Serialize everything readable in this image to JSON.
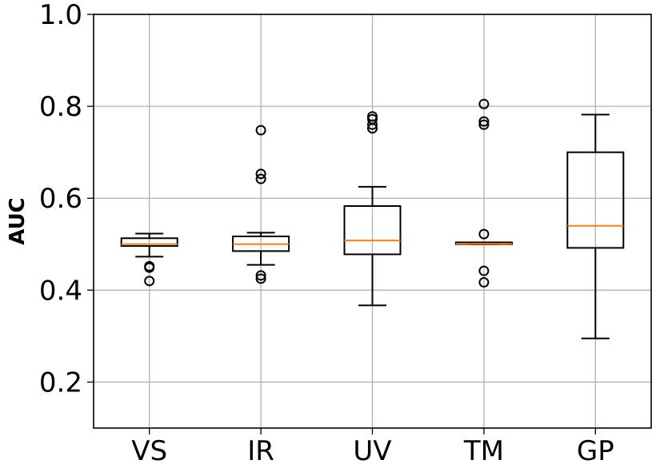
{
  "chart_data": {
    "type": "box",
    "title": "",
    "xlabel": "",
    "ylabel": "AUC",
    "ylim": [
      0.1,
      1.0
    ],
    "yticks": [
      0.2,
      0.4,
      0.6,
      0.8,
      1.0
    ],
    "ytick_labels": [
      "0.2",
      "0.4",
      "0.6",
      "0.8",
      "1.0"
    ],
    "grid": true,
    "categories": [
      "VS",
      "IR",
      "UV",
      "TM",
      "GP"
    ],
    "boxes": [
      {
        "category": "VS",
        "whisker_low": 0.473,
        "q1": 0.496,
        "median": 0.5,
        "q3": 0.513,
        "whisker_high": 0.523,
        "outliers": [
          0.452,
          0.449,
          0.42
        ]
      },
      {
        "category": "IR",
        "whisker_low": 0.455,
        "q1": 0.485,
        "median": 0.5,
        "q3": 0.517,
        "whisker_high": 0.525,
        "outliers": [
          0.748,
          0.653,
          0.642,
          0.432,
          0.425
        ]
      },
      {
        "category": "UV",
        "whisker_low": 0.367,
        "q1": 0.478,
        "median": 0.508,
        "q3": 0.583,
        "whisker_high": 0.625,
        "outliers": [
          0.778,
          0.772,
          0.76,
          0.752
        ]
      },
      {
        "category": "TM",
        "whisker_low": 0.5,
        "q1": 0.5,
        "median": 0.501,
        "q3": 0.504,
        "whisker_high": 0.504,
        "outliers": [
          0.805,
          0.767,
          0.76,
          0.522,
          0.442,
          0.417
        ]
      },
      {
        "category": "GP",
        "whisker_low": 0.295,
        "q1": 0.492,
        "median": 0.54,
        "q3": 0.7,
        "whisker_high": 0.782,
        "outliers": []
      }
    ],
    "colors": {
      "box": "#000000",
      "median": "#ff7f0e",
      "grid": "#b0b0b0"
    }
  }
}
